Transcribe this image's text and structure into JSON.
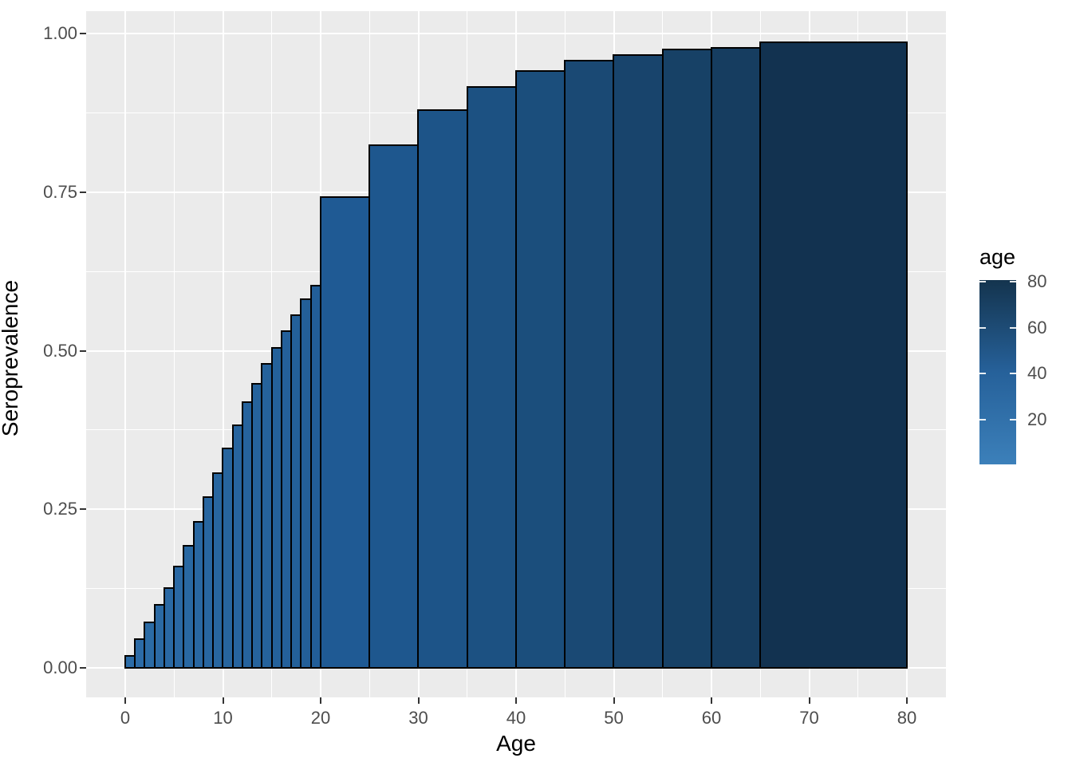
{
  "chart_data": {
    "type": "bar",
    "title": "",
    "xlabel": "Age",
    "ylabel": "Seroprevalence",
    "xlim": [
      -4,
      84
    ],
    "ylim": [
      -0.04654,
      1.03522
    ],
    "grid": true,
    "legend_position": "right",
    "x_major_ticks": [
      0,
      10,
      20,
      30,
      40,
      50,
      60,
      70,
      80
    ],
    "x_tick_labels": [
      "0",
      "10",
      "20",
      "30",
      "40",
      "50",
      "60",
      "70",
      "80"
    ],
    "x_minor_ticks": [
      5,
      15,
      25,
      35,
      45,
      55,
      65,
      75
    ],
    "y_major_ticks": [
      0,
      0.25,
      0.5,
      0.75,
      1
    ],
    "y_tick_labels": [
      "0.00",
      "0.25",
      "0.50",
      "0.75",
      "1.00"
    ],
    "y_minor_ticks": [
      0.125,
      0.375,
      0.625,
      0.875
    ],
    "bars": [
      {
        "x0": 0,
        "x1": 1,
        "y": 0.019
      },
      {
        "x0": 1,
        "x1": 2,
        "y": 0.045
      },
      {
        "x0": 2,
        "x1": 3,
        "y": 0.071
      },
      {
        "x0": 3,
        "x1": 4,
        "y": 0.099
      },
      {
        "x0": 4,
        "x1": 5,
        "y": 0.126
      },
      {
        "x0": 5,
        "x1": 6,
        "y": 0.159
      },
      {
        "x0": 6,
        "x1": 7,
        "y": 0.192
      },
      {
        "x0": 7,
        "x1": 8,
        "y": 0.23
      },
      {
        "x0": 8,
        "x1": 9,
        "y": 0.269
      },
      {
        "x0": 9,
        "x1": 10,
        "y": 0.307
      },
      {
        "x0": 10,
        "x1": 11,
        "y": 0.345
      },
      {
        "x0": 11,
        "x1": 12,
        "y": 0.382
      },
      {
        "x0": 12,
        "x1": 13,
        "y": 0.418
      },
      {
        "x0": 13,
        "x1": 14,
        "y": 0.447
      },
      {
        "x0": 14,
        "x1": 15,
        "y": 0.479
      },
      {
        "x0": 15,
        "x1": 16,
        "y": 0.504
      },
      {
        "x0": 16,
        "x1": 17,
        "y": 0.531
      },
      {
        "x0": 17,
        "x1": 18,
        "y": 0.556
      },
      {
        "x0": 18,
        "x1": 19,
        "y": 0.581
      },
      {
        "x0": 19,
        "x1": 20,
        "y": 0.602
      },
      {
        "x0": 20,
        "x1": 25,
        "y": 0.742
      },
      {
        "x0": 25,
        "x1": 30,
        "y": 0.824
      },
      {
        "x0": 30,
        "x1": 35,
        "y": 0.879
      },
      {
        "x0": 35,
        "x1": 40,
        "y": 0.916
      },
      {
        "x0": 40,
        "x1": 45,
        "y": 0.941
      },
      {
        "x0": 45,
        "x1": 50,
        "y": 0.957
      },
      {
        "x0": 50,
        "x1": 55,
        "y": 0.966
      },
      {
        "x0": 55,
        "x1": 60,
        "y": 0.974
      },
      {
        "x0": 60,
        "x1": 65,
        "y": 0.977
      },
      {
        "x0": 65,
        "x1": 80,
        "y": 0.986
      }
    ],
    "fill_anchors": [
      [
        1,
        "#2c6ca7"
      ],
      [
        15,
        "#25629b"
      ],
      [
        25,
        "#1f5a94"
      ],
      [
        35,
        "#1d5488"
      ],
      [
        45,
        "#1b4e7c"
      ],
      [
        55,
        "#18446c"
      ],
      [
        65,
        "#163d60"
      ],
      [
        80,
        "#123250"
      ]
    ],
    "legend": {
      "title": "age",
      "tick_labels": [
        "80",
        "60",
        "40",
        "20"
      ],
      "tick_values": [
        80,
        60,
        40,
        20
      ],
      "gradient_bottom": "#3c80ba",
      "gradient_mid": "#26619a",
      "gradient_top": "#14344e"
    }
  },
  "colors": {
    "page_bg": "#FFFFFF",
    "panel_bg": "#EBEBEB",
    "grid": "#FFFFFF",
    "bar_stroke": "#000000",
    "tick_text": "#4D4D4D",
    "tick_mark": "#333333",
    "axis_title": "#000000"
  }
}
